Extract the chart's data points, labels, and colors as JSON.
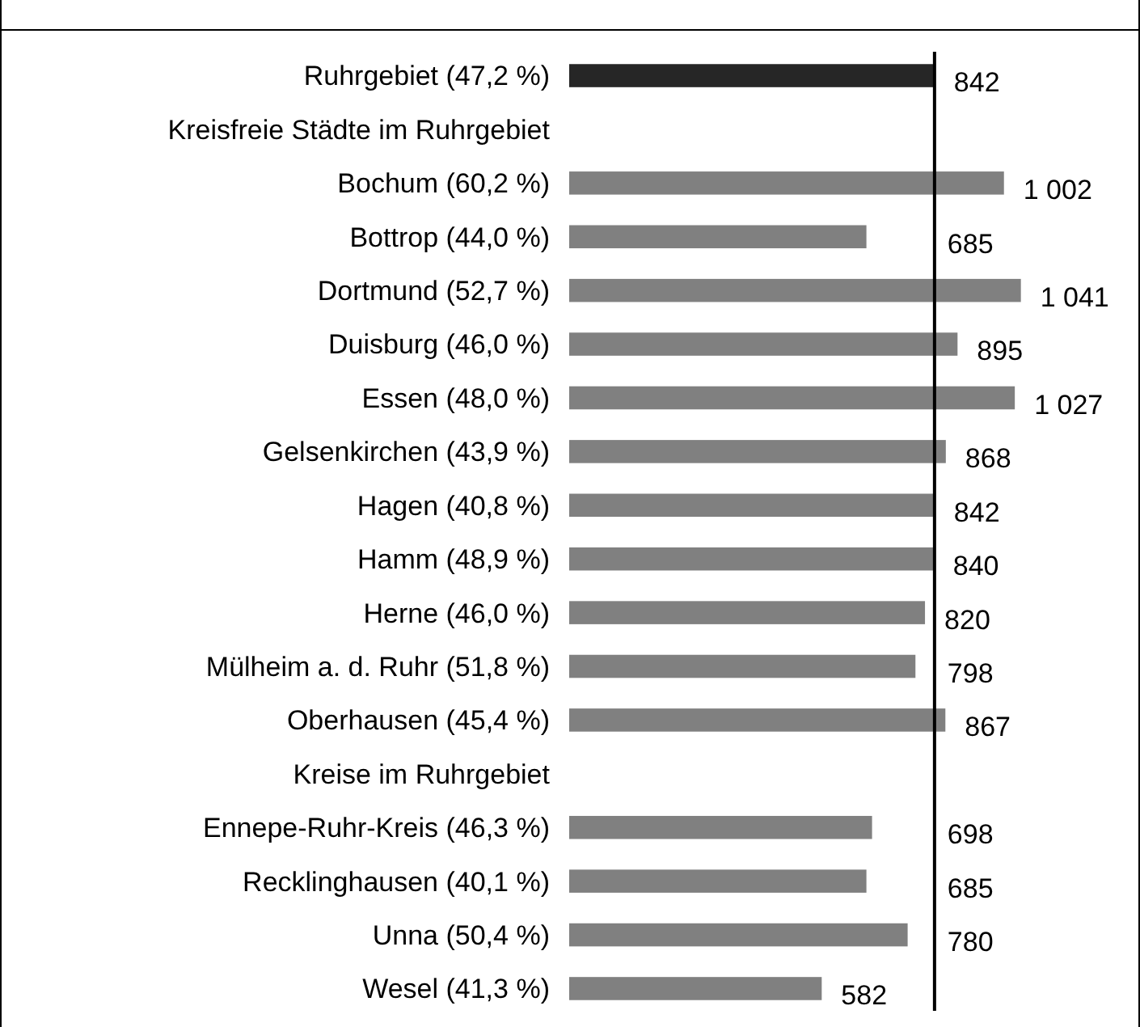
{
  "chart_data": {
    "type": "bar",
    "orientation": "horizontal",
    "categories": [
      "Ruhrgebiet (47,2 %)",
      "Kreisfreie Städte im Ruhrgebiet",
      "Bochum  (60,2 %)",
      "Bottrop  (44,0 %)",
      "Dortmund  (52,7 %)",
      "Duisburg  (46,0 %)",
      "Essen  (48,0 %)",
      "Gelsenkirchen  (43,9 %)",
      "Hagen  (40,8 %)",
      "Hamm  (48,9 %)",
      "Herne  (46,0 %)",
      "Mülheim a. d. Ruhr  (51,8 %)",
      "Oberhausen  (45,4 %)",
      "Kreise im Ruhrgebiet",
      "Ennepe-Ruhr-Kreis (46,3 %)",
      "Recklinghausen (40,1 %)",
      "Unna (50,4 %)",
      "Wesel (41,3 %)"
    ],
    "values": [
      842,
      null,
      1002,
      685,
      1041,
      895,
      1027,
      868,
      842,
      840,
      820,
      798,
      867,
      null,
      698,
      685,
      780,
      582
    ],
    "value_labels": [
      "842",
      null,
      "1 002",
      "685",
      "1 041",
      "895",
      "1 027",
      "868",
      "842",
      "840",
      "820",
      "798",
      "867",
      null,
      "698",
      "685",
      "780",
      "582"
    ],
    "colors": [
      "#262626",
      null,
      "#808080",
      "#808080",
      "#808080",
      "#808080",
      "#808080",
      "#808080",
      "#808080",
      "#808080",
      "#808080",
      "#808080",
      "#808080",
      null,
      "#808080",
      "#808080",
      "#808080",
      "#808080"
    ],
    "ref_lines": [
      {
        "axis": "x",
        "value": 842,
        "color": "#000000"
      }
    ]
  }
}
